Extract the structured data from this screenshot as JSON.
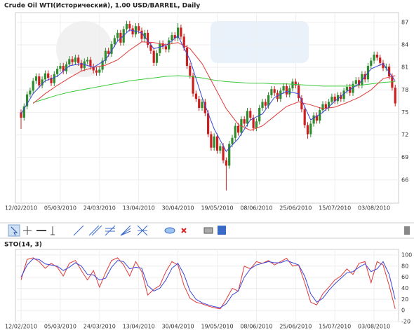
{
  "chart_data": [
    {
      "type": "candlestick",
      "title": "Crude Oil WTI(Исторический), 1.00 USD/BARREL, Daily",
      "categories": [
        "12/02/2010",
        null,
        null,
        null,
        null,
        null,
        null,
        null,
        null,
        null,
        null,
        null,
        null,
        "05/03/2010",
        null,
        null,
        null,
        null,
        null,
        null,
        null,
        null,
        null,
        null,
        null,
        null,
        "24/03/2010",
        null,
        null,
        null,
        null,
        null,
        null,
        null,
        null,
        null,
        null,
        null,
        null,
        "13/04/2010",
        null,
        null,
        null,
        null,
        null,
        null,
        null,
        null,
        null,
        null,
        null,
        null,
        "30/04/2010",
        null,
        null,
        null,
        null,
        null,
        null,
        null,
        null,
        null,
        null,
        null,
        null,
        "19/05/2010",
        null,
        null,
        null,
        null,
        null,
        null,
        null,
        null,
        null,
        null,
        null,
        null,
        "08/06/2010",
        null,
        null,
        null,
        null,
        null,
        null,
        null,
        null,
        null,
        null,
        null,
        null,
        "25/06/2010",
        null,
        null,
        null,
        null,
        null,
        null,
        null,
        null,
        null,
        null,
        null,
        null,
        "15/07/2010",
        null,
        null,
        null,
        null,
        null,
        null,
        null,
        null,
        null,
        null,
        null,
        null,
        "03/08/2010",
        null,
        null,
        null,
        null,
        null,
        null,
        null
      ],
      "open": [
        75.0,
        74.3,
        75.8,
        77.4,
        77.9,
        79.2,
        79.8,
        78.6,
        79.4,
        80.2,
        79.6,
        78.9,
        80.1,
        80.8,
        81.2,
        80.5,
        81.4,
        82.1,
        81.7,
        82.3,
        81.6,
        80.9,
        81.8,
        82.0,
        81.1,
        80.6,
        80.3,
        80.7,
        81.9,
        83.2,
        82.8,
        84.1,
        84.9,
        85.6,
        84.3,
        86.1,
        86.8,
        86.2,
        85.4,
        86.5,
        85.9,
        84.8,
        85.6,
        84.0,
        83.2,
        81.6,
        82.9,
        84.2,
        83.8,
        83.4,
        84.6,
        85.3,
        84.9,
        86.3,
        85.1,
        83.6,
        81.2,
        79.9,
        77.5,
        76.8,
        75.6,
        76.4,
        74.9,
        72.1,
        70.3,
        71.8,
        69.9,
        70.5,
        68.6,
        67.9,
        70.8,
        71.6,
        73.2,
        72.3,
        74.1,
        73.5,
        75.2,
        74.3,
        72.9,
        73.8,
        75.6,
        76.4,
        75.9,
        77.3,
        78.1,
        77.6,
        76.8,
        77.9,
        78.5,
        77.4,
        78.2,
        79.1,
        78.6,
        76.9,
        75.4,
        73.3,
        72.1,
        73.5,
        74.6,
        73.9,
        75.3,
        76.1,
        75.6,
        76.4,
        77.1,
        76.5,
        77.3,
        76.8,
        77.9,
        78.4,
        77.6,
        78.8,
        79.3,
        78.6,
        80.1,
        79.4,
        81.2,
        81.9,
        82.7,
        82.3,
        81.6,
        80.9,
        81.1,
        79.8,
        78.3
      ],
      "high": [
        75.4,
        76.2,
        77.8,
        78.3,
        79.6,
        80.2,
        80.2,
        79.8,
        80.6,
        80.6,
        80.0,
        80.5,
        81.2,
        81.6,
        81.6,
        81.8,
        82.5,
        82.5,
        82.7,
        82.7,
        82.0,
        82.2,
        82.4,
        82.4,
        81.5,
        81.0,
        81.1,
        82.3,
        83.6,
        83.6,
        84.5,
        85.3,
        86.0,
        86.0,
        86.5,
        87.2,
        87.2,
        86.6,
        86.9,
        86.9,
        86.3,
        86.0,
        86.0,
        84.4,
        83.6,
        83.3,
        84.6,
        84.6,
        84.2,
        85.0,
        85.7,
        85.7,
        86.9,
        86.7,
        85.5,
        84.0,
        81.6,
        80.3,
        77.9,
        77.2,
        76.8,
        76.8,
        75.3,
        72.5,
        72.2,
        72.2,
        70.9,
        70.9,
        69.0,
        71.2,
        72.0,
        73.6,
        73.6,
        74.5,
        74.5,
        75.6,
        75.6,
        74.7,
        74.2,
        76.0,
        76.8,
        76.8,
        77.7,
        78.5,
        78.5,
        78.0,
        78.3,
        78.9,
        78.9,
        78.6,
        79.5,
        79.5,
        79.0,
        77.3,
        75.8,
        73.7,
        73.9,
        75.0,
        75.0,
        75.7,
        76.5,
        76.5,
        76.8,
        77.5,
        77.5,
        77.7,
        77.7,
        78.3,
        78.8,
        78.8,
        79.2,
        79.7,
        79.7,
        80.5,
        80.5,
        81.6,
        82.3,
        83.1,
        83.1,
        82.7,
        82.0,
        81.5,
        81.5,
        80.2,
        78.7
      ],
      "low": [
        72.8,
        73.9,
        75.4,
        77.0,
        77.5,
        78.8,
        78.2,
        78.2,
        79.0,
        79.2,
        78.5,
        78.5,
        79.7,
        80.4,
        80.1,
        80.1,
        81.0,
        81.3,
        81.3,
        81.2,
        80.5,
        80.5,
        81.4,
        80.7,
        80.2,
        79.9,
        79.9,
        80.3,
        81.5,
        82.4,
        82.4,
        83.7,
        84.5,
        83.9,
        83.9,
        85.7,
        85.8,
        85.0,
        85.0,
        85.5,
        84.4,
        84.4,
        83.6,
        82.8,
        81.2,
        81.2,
        82.5,
        83.4,
        83.0,
        83.0,
        84.2,
        84.5,
        84.5,
        84.7,
        83.2,
        80.8,
        79.5,
        77.1,
        76.4,
        75.2,
        75.2,
        74.5,
        71.7,
        69.9,
        69.9,
        69.5,
        69.5,
        68.2,
        64.6,
        67.5,
        70.4,
        71.2,
        71.9,
        71.9,
        73.1,
        73.1,
        73.9,
        72.5,
        72.5,
        73.4,
        75.2,
        75.5,
        75.5,
        76.9,
        77.2,
        76.4,
        76.4,
        77.5,
        77.0,
        77.0,
        77.8,
        78.2,
        76.5,
        75.0,
        72.9,
        71.5,
        71.7,
        73.1,
        73.5,
        73.5,
        74.9,
        75.2,
        75.2,
        76.0,
        76.1,
        76.1,
        76.4,
        76.4,
        77.5,
        77.2,
        77.2,
        78.4,
        78.2,
        78.2,
        79.0,
        79.0,
        80.8,
        81.5,
        81.9,
        81.2,
        80.5,
        80.5,
        79.4,
        77.9,
        75.8
      ],
      "close": [
        74.3,
        75.8,
        77.4,
        77.9,
        79.2,
        79.8,
        78.6,
        79.4,
        80.2,
        79.6,
        78.9,
        80.1,
        80.8,
        81.2,
        80.5,
        81.4,
        82.1,
        81.7,
        82.3,
        81.6,
        80.9,
        81.8,
        82.0,
        81.1,
        80.6,
        80.3,
        80.7,
        81.9,
        83.2,
        82.8,
        84.1,
        84.9,
        85.6,
        84.3,
        86.1,
        86.8,
        86.2,
        85.4,
        86.5,
        85.9,
        84.8,
        85.6,
        84.0,
        83.2,
        81.6,
        82.9,
        84.2,
        83.8,
        83.4,
        84.6,
        85.3,
        84.9,
        86.3,
        85.1,
        83.6,
        81.2,
        79.9,
        77.5,
        76.8,
        75.6,
        76.4,
        74.9,
        72.1,
        70.3,
        71.8,
        69.9,
        70.5,
        68.6,
        67.9,
        70.8,
        71.6,
        73.2,
        72.3,
        74.1,
        73.5,
        75.2,
        74.3,
        72.9,
        73.8,
        75.6,
        76.4,
        75.9,
        77.3,
        78.1,
        77.6,
        76.8,
        77.9,
        78.5,
        77.4,
        78.2,
        79.1,
        78.6,
        76.9,
        75.4,
        73.3,
        72.1,
        73.5,
        74.6,
        73.9,
        75.3,
        76.1,
        75.6,
        76.4,
        77.1,
        76.5,
        77.3,
        76.8,
        77.9,
        78.4,
        77.6,
        78.8,
        79.3,
        78.6,
        80.1,
        79.4,
        81.2,
        81.9,
        82.7,
        82.3,
        81.6,
        80.9,
        81.1,
        79.8,
        78.3,
        76.2
      ],
      "up_color": "#2e8b2e",
      "down_color": "#cc2020",
      "overlays": [
        {
          "color": "#3cc83c",
          "x": [
            0,
            4,
            8,
            12,
            16,
            20,
            24,
            28,
            32,
            36,
            40,
            44,
            48,
            52,
            56,
            60,
            64,
            68,
            72,
            76,
            80,
            84,
            88,
            92,
            96,
            100,
            104,
            108,
            112,
            116,
            120,
            124
          ],
          "values": [
            null,
            76.3,
            76.8,
            77.3,
            77.7,
            78.0,
            78.3,
            78.6,
            78.9,
            79.2,
            79.4,
            79.6,
            79.8,
            79.9,
            79.8,
            79.6,
            79.3,
            79.1,
            79.0,
            78.9,
            78.9,
            78.8,
            78.8,
            78.7,
            78.6,
            78.5,
            78.5,
            78.5,
            78.6,
            78.8,
            79.0,
            79.1
          ]
        },
        {
          "color": "#e03a3a",
          "x": [
            0,
            4,
            8,
            12,
            16,
            20,
            24,
            28,
            32,
            36,
            40,
            44,
            48,
            52,
            56,
            60,
            64,
            68,
            72,
            76,
            80,
            84,
            88,
            92,
            96,
            100,
            104,
            108,
            112,
            116,
            120,
            124
          ],
          "values": [
            null,
            76.2,
            77.5,
            78.6,
            79.6,
            80.5,
            81.0,
            81.3,
            82.0,
            83.3,
            84.4,
            84.3,
            84.0,
            84.3,
            83.5,
            81.5,
            78.5,
            75.5,
            73.4,
            72.6,
            73.2,
            74.5,
            75.8,
            76.4,
            76.0,
            75.5,
            75.7,
            76.3,
            77.0,
            78.0,
            79.5,
            79.9
          ]
        },
        {
          "color": "#3a46d8",
          "x": [
            0,
            4,
            8,
            12,
            16,
            20,
            24,
            28,
            32,
            36,
            40,
            44,
            48,
            52,
            56,
            60,
            64,
            68,
            72,
            76,
            80,
            84,
            88,
            92,
            96,
            100,
            104,
            108,
            112,
            116,
            120,
            124
          ],
          "values": [
            74.8,
            77.5,
            79.2,
            79.8,
            81.2,
            81.5,
            81.0,
            82.0,
            84.5,
            86.0,
            85.6,
            83.5,
            83.9,
            85.2,
            82.0,
            77.0,
            72.8,
            69.8,
            71.5,
            74.0,
            74.8,
            77.0,
            77.8,
            77.5,
            74.0,
            75.0,
            76.5,
            77.8,
            78.8,
            80.8,
            81.5,
            79.2
          ]
        }
      ],
      "ylim": [
        62.9,
        88.3
      ],
      "yticks": [
        66,
        69,
        72,
        75,
        78,
        81,
        84,
        87
      ],
      "grid": true
    },
    {
      "type": "line",
      "title": "STO(14, 3)",
      "x": [
        0,
        2,
        4,
        6,
        8,
        10,
        12,
        14,
        16,
        18,
        20,
        22,
        24,
        26,
        28,
        30,
        32,
        34,
        36,
        38,
        40,
        42,
        44,
        46,
        48,
        50,
        52,
        54,
        56,
        58,
        60,
        62,
        64,
        66,
        68,
        70,
        72,
        74,
        76,
        78,
        80,
        82,
        84,
        86,
        88,
        90,
        92,
        94,
        96,
        98,
        100,
        102,
        104,
        106,
        108,
        110,
        112,
        114,
        116,
        118,
        120,
        122,
        124
      ],
      "series": [
        {
          "color": "#e03a3a",
          "values": [
            55,
            92,
            95,
            88,
            76,
            85,
            78,
            62,
            85,
            90,
            72,
            55,
            72,
            42,
            68,
            90,
            95,
            82,
            62,
            88,
            70,
            28,
            38,
            45,
            70,
            88,
            82,
            45,
            22,
            15,
            12,
            8,
            5,
            3,
            20,
            40,
            35,
            80,
            75,
            88,
            85,
            90,
            82,
            88,
            94,
            80,
            82,
            50,
            15,
            10,
            30,
            42,
            55,
            62,
            75,
            65,
            85,
            88,
            50,
            88,
            82,
            45,
            3
          ]
        },
        {
          "color": "#3a46d8",
          "values": [
            60,
            82,
            93,
            92,
            84,
            82,
            80,
            72,
            78,
            86,
            80,
            65,
            64,
            55,
            58,
            78,
            90,
            88,
            75,
            78,
            76,
            45,
            35,
            40,
            55,
            76,
            85,
            65,
            35,
            20,
            14,
            10,
            7,
            5,
            12,
            28,
            35,
            60,
            75,
            82,
            85,
            88,
            86,
            86,
            90,
            86,
            82,
            62,
            30,
            15,
            22,
            36,
            48,
            58,
            68,
            70,
            78,
            84,
            70,
            75,
            88,
            65,
            20
          ]
        }
      ],
      "ylim": [
        -20,
        110
      ],
      "yticks": [
        -20,
        0,
        20,
        40,
        60,
        80,
        100
      ],
      "grid": true
    }
  ]
}
